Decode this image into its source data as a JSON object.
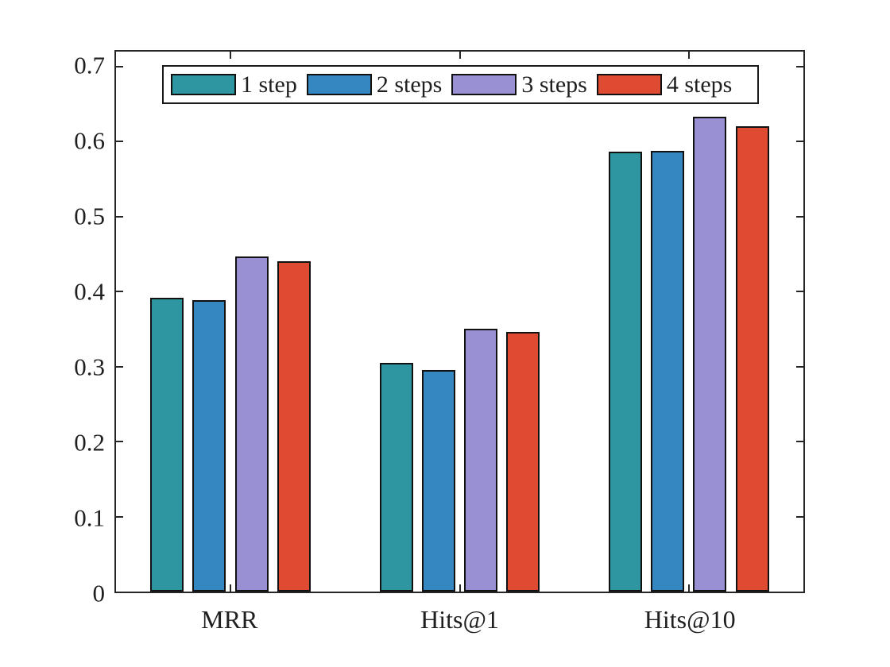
{
  "chart_data": {
    "type": "bar",
    "title": "",
    "categories": [
      "MRR",
      "Hits@1",
      "Hits@10"
    ],
    "series": [
      {
        "name": "1 step",
        "color": "#2E96A1",
        "values": [
          0.392,
          0.305,
          0.587
        ]
      },
      {
        "name": "2 steps",
        "color": "#3487C0",
        "values": [
          0.389,
          0.295,
          0.588
        ]
      },
      {
        "name": "3 steps",
        "color": "#998FD3",
        "values": [
          0.447,
          0.35,
          0.633
        ]
      },
      {
        "name": "4 steps",
        "color": "#DE4A32",
        "values": [
          0.44,
          0.346,
          0.621
        ]
      }
    ],
    "ylim": [
      0,
      0.72
    ],
    "yticks": [
      0,
      0.1,
      0.2,
      0.3,
      0.4,
      0.5,
      0.6,
      0.7
    ],
    "ytick_labels": [
      "0",
      "0.1",
      "0.2",
      "0.3",
      "0.4",
      "0.5",
      "0.6",
      "0.7"
    ],
    "xlabel": "",
    "ylabel": "",
    "grid": false,
    "legend_position": "top-inside-horizontal",
    "axis_color": "#262626",
    "bar_edge_color": "#111111",
    "background_color": "#ffffff"
  }
}
